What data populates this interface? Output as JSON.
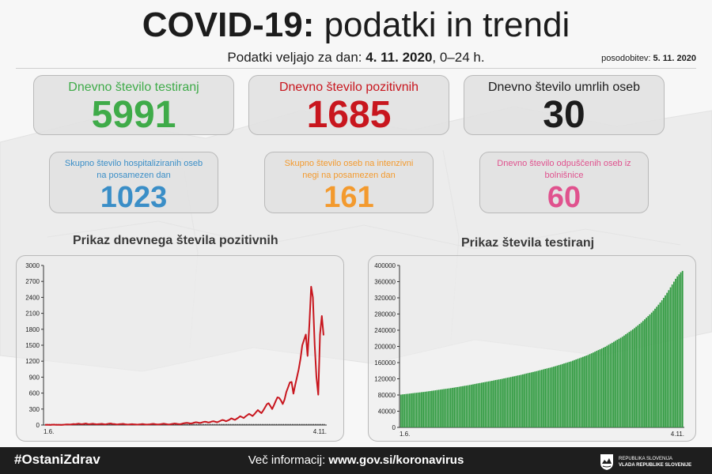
{
  "header": {
    "title_bold": "COVID-19:",
    "title_rest": " podatki in trendi",
    "subtitle_prefix": "Podatki veljajo za dan: ",
    "subtitle_date": "4. 11. 2020",
    "subtitle_suffix": ", 0–24 h.",
    "updated_label": "posodobitev: ",
    "updated_date": "5. 11. 2020"
  },
  "colors": {
    "green": "#3fab49",
    "red": "#c8161e",
    "black": "#1c1c1c",
    "blue": "#3a8ec7",
    "orange": "#f39a2e",
    "pink": "#e0528e",
    "bar_green": "#2f9a3f",
    "line_red": "#c8161e",
    "dark_tick": "#333333"
  },
  "stats": {
    "tests": {
      "label": "Dnevno število testiranj",
      "value": "5991"
    },
    "positive": {
      "label": "Dnevno število pozitivnih",
      "value": "1685"
    },
    "deaths": {
      "label": "Dnevno število umrlih oseb",
      "value": "30"
    },
    "hospitalized": {
      "label": "Skupno število hospitaliziranih oseb na posamezen dan",
      "value": "1023"
    },
    "icu": {
      "label": "Skupno število oseb na intenzivni negi na posamezen dan",
      "value": "161"
    },
    "discharged": {
      "label": "Dnevno število odpuščenih oseb iz bolnišnice",
      "value": "60"
    }
  },
  "chart_data": [
    {
      "type": "line",
      "title": "Prikaz dnevnega števila pozitivnih",
      "xlabel": "",
      "ylabel": "",
      "x_tick_labels": [
        "1.6.",
        "4.11."
      ],
      "ylim": [
        0,
        3000
      ],
      "yticks": [
        0,
        300,
        600,
        900,
        1200,
        1500,
        1800,
        2100,
        2400,
        2700,
        3000
      ],
      "grid": false,
      "series": [
        {
          "values": [
            3,
            5,
            4,
            2,
            6,
            8,
            5,
            3,
            4,
            2,
            5,
            7,
            10,
            12,
            9,
            14,
            18,
            15,
            21,
            25,
            20,
            17,
            22,
            28,
            19,
            15,
            21,
            24,
            18,
            13,
            17,
            20,
            23,
            16,
            12,
            19,
            25,
            28,
            21,
            18,
            14,
            12,
            16,
            19,
            23,
            15,
            11,
            9,
            13,
            17,
            14,
            10,
            8,
            12,
            15,
            19,
            13,
            9,
            11,
            14,
            18,
            22,
            17,
            12,
            10,
            15,
            21,
            25,
            19,
            14,
            11,
            16,
            22,
            28,
            24,
            18,
            15,
            23,
            31,
            37,
            42,
            35,
            28,
            33,
            45,
            52,
            47,
            38,
            43,
            55,
            62,
            58,
            48,
            54,
            67,
            72,
            61,
            52,
            65,
            82,
            95,
            88,
            72,
            85,
            101,
            125,
            110,
            96,
            118,
            140,
            165,
            148,
            132,
            162,
            185,
            210,
            190,
            170,
            205,
            245,
            280,
            250,
            225,
            275,
            330,
            390,
            410,
            360,
            300,
            370,
            450,
            520,
            510,
            460,
            395,
            480,
            620,
            710,
            800,
            810,
            590,
            750,
            900,
            1050,
            1250,
            1500,
            1600,
            1700,
            1300,
            1900,
            2600,
            2400,
            1500,
            900,
            570,
            1700,
            2050,
            1685
          ]
        },
        {
          "name": "",
          "values": [
            20,
            20,
            20,
            20,
            20,
            20,
            20,
            20,
            20,
            20,
            20,
            20,
            20,
            20,
            20,
            20,
            20,
            20,
            20,
            20,
            20,
            20,
            20,
            20,
            20,
            20,
            20,
            20,
            20,
            20,
            20,
            20,
            20,
            20,
            20,
            20,
            20,
            20,
            20,
            20,
            20,
            20,
            20,
            20,
            20,
            20,
            20,
            20,
            20,
            20,
            20,
            20,
            20,
            20,
            20,
            20,
            20,
            20,
            20,
            20,
            20,
            20,
            20,
            20,
            20,
            20,
            20,
            20,
            20,
            20,
            20,
            20,
            20,
            20,
            20,
            20,
            20,
            20,
            20,
            20,
            20,
            20,
            20,
            20,
            20,
            20,
            20,
            20,
            20,
            20,
            20,
            20,
            20,
            20,
            20,
            20,
            20,
            20,
            20,
            20,
            20,
            20,
            20,
            20,
            20,
            20,
            20,
            20,
            20,
            20,
            20,
            20,
            20,
            20,
            20,
            20,
            20,
            20,
            20,
            20,
            20,
            20,
            20,
            20,
            20,
            20,
            20,
            20,
            20,
            20,
            20,
            20,
            20,
            20,
            20,
            20,
            20,
            20,
            20,
            20,
            20,
            20,
            20,
            20,
            20,
            20,
            20,
            20,
            20,
            20,
            20,
            20,
            20,
            20,
            20,
            20,
            20,
            20
          ]
        }
      ]
    },
    {
      "type": "bar",
      "title": "Prikaz števila testiranj",
      "xlabel": "",
      "ylabel": "",
      "x_tick_labels": [
        "1.6.",
        "4.11."
      ],
      "ylim": [
        0,
        400000
      ],
      "yticks": [
        0,
        40000,
        80000,
        120000,
        160000,
        200000,
        240000,
        280000,
        320000,
        360000,
        400000
      ],
      "grid": false,
      "series": [
        {
          "values": [
            81000,
            81500,
            82000,
            82500,
            83000,
            83500,
            84000,
            84500,
            85000,
            85500,
            86000,
            86500,
            87000,
            87500,
            88000,
            88600,
            89200,
            89800,
            90400,
            91000,
            91600,
            92200,
            92800,
            93400,
            94000,
            94600,
            95200,
            95800,
            96400,
            97000,
            97700,
            98400,
            99100,
            99800,
            100500,
            101200,
            101900,
            102600,
            103300,
            104000,
            104800,
            105600,
            106400,
            107200,
            108000,
            108800,
            109600,
            110400,
            111200,
            112000,
            112800,
            113600,
            114400,
            115200,
            116000,
            116800,
            117600,
            118400,
            119200,
            120000,
            120900,
            121800,
            122700,
            123600,
            124500,
            125400,
            126300,
            127200,
            128100,
            129000,
            130000,
            131000,
            132000,
            133000,
            134000,
            135000,
            136000,
            137000,
            138000,
            139000,
            140100,
            141200,
            142300,
            143400,
            144500,
            145600,
            146700,
            147800,
            148900,
            150000,
            151300,
            152600,
            153900,
            155200,
            156500,
            157800,
            159100,
            160400,
            161700,
            163000,
            164600,
            166200,
            167800,
            169400,
            171000,
            172600,
            174200,
            175800,
            177400,
            179000,
            181000,
            183000,
            185000,
            187000,
            189000,
            191000,
            193000,
            195000,
            197000,
            199000,
            201500,
            204000,
            206500,
            209000,
            211500,
            214000,
            216500,
            219000,
            221500,
            224000,
            227000,
            230000,
            233000,
            236000,
            239000,
            242000,
            245000,
            248500,
            252000,
            255500,
            259000,
            263000,
            267000,
            271000,
            275000,
            279000,
            283500,
            288000,
            293000,
            298000,
            303000,
            308500,
            314000,
            320000,
            326000,
            332500,
            339000,
            346000,
            353000,
            360000,
            367000,
            373000,
            378000,
            383000,
            386500
          ]
        }
      ]
    }
  ],
  "footer": {
    "hashtag": "#OstaniZdrav",
    "more_label": "Več informacij: ",
    "more_url": "www.gov.si/koronavirus",
    "gov_line1": "REPUBLIKA SLOVENIJA",
    "gov_line2": "VLADA REPUBLIKE SLOVENIJE"
  }
}
